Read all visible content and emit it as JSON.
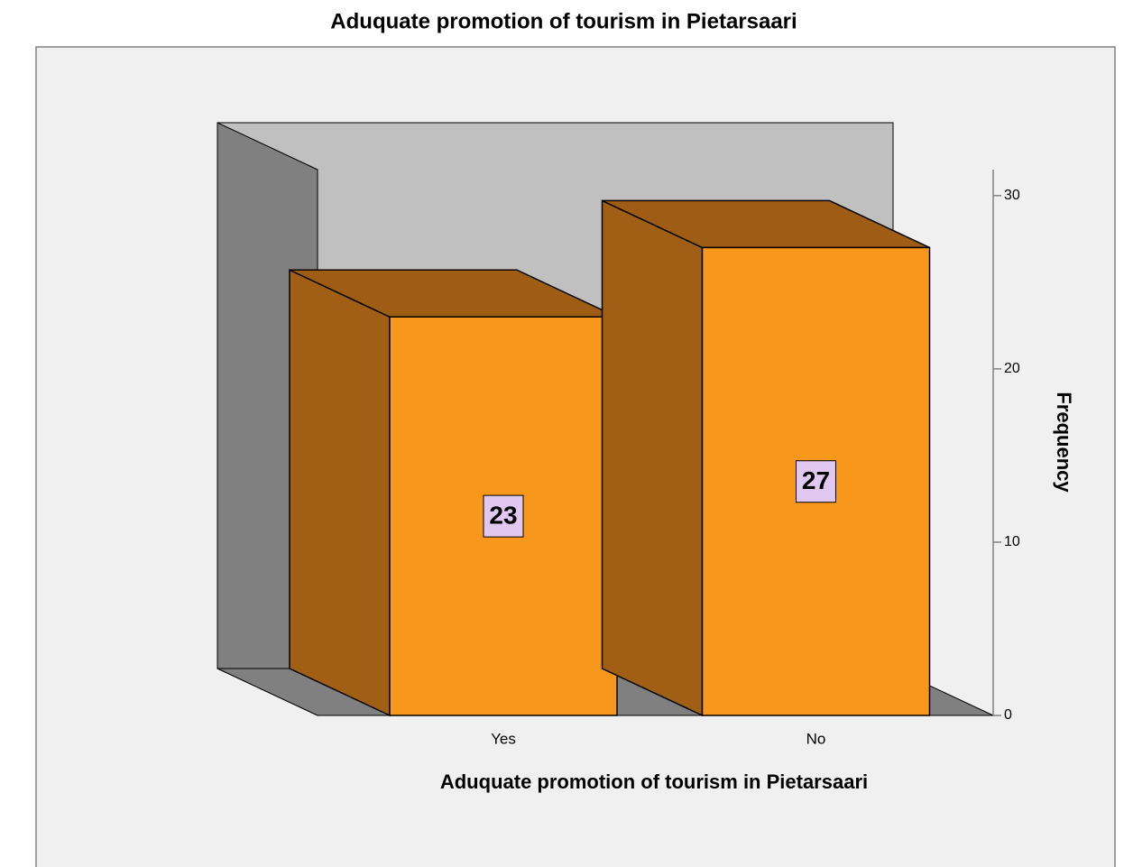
{
  "chart_data": {
    "type": "bar3d",
    "title": "Aduquate promotion of tourism in Pietarsaari",
    "x_label": "Aduquate promotion of tourism in Pietarsaari",
    "y_label": "Frequency",
    "categories": [
      "Yes",
      "No"
    ],
    "values": [
      23,
      27
    ],
    "color": "#f7981d",
    "ylim": [
      0,
      31.5
    ],
    "yticks": [
      0,
      10,
      20,
      30
    ]
  }
}
